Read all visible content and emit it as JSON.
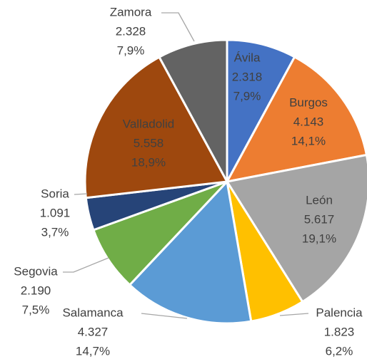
{
  "chart_data": {
    "type": "pie",
    "categories": [
      "Ávila",
      "Burgos",
      "León",
      "Palencia",
      "Salamanca",
      "Segovia",
      "Soria",
      "Valladolid",
      "Zamora"
    ],
    "values": [
      2318,
      4143,
      5617,
      1823,
      4327,
      2190,
      1091,
      5558,
      2328
    ],
    "value_labels": [
      "2.318",
      "4.143",
      "5.617",
      "1.823",
      "4.327",
      "2.190",
      "1.091",
      "5.558",
      "2.328"
    ],
    "percents": [
      7.9,
      14.1,
      19.1,
      6.2,
      14.7,
      7.5,
      3.7,
      18.9,
      7.9
    ],
    "percent_labels": [
      "7,9%",
      "14,1%",
      "19,1%",
      "6,2%",
      "14,7%",
      "7,5%",
      "3,7%",
      "18,9%",
      "7,9%"
    ],
    "colors": [
      "#4472c4",
      "#ed7d31",
      "#a5a5a5",
      "#ffc000",
      "#5b9bd5",
      "#70ad47",
      "#264478",
      "#9e480e",
      "#636363"
    ]
  }
}
